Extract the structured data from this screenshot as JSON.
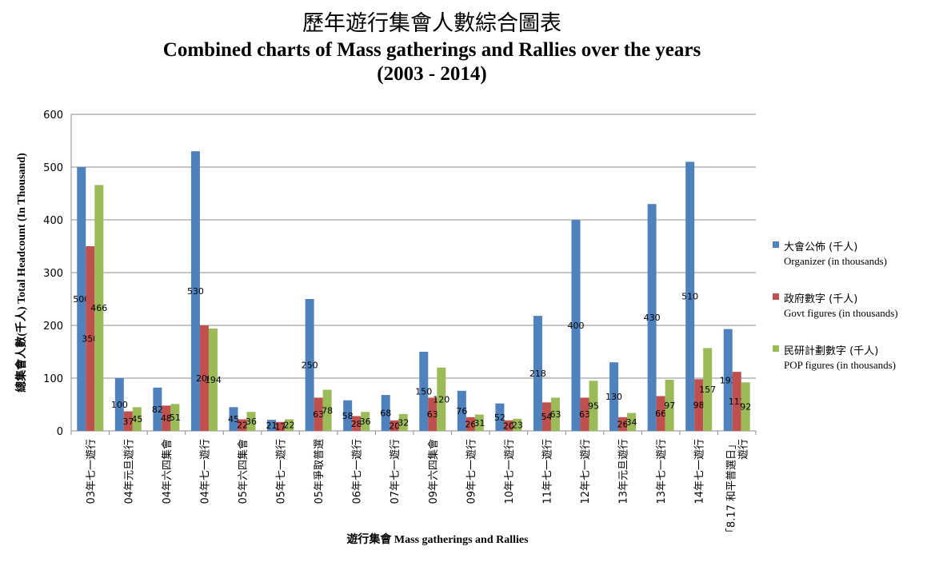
{
  "chart_data": {
    "type": "bar",
    "title": "歷年遊行集會人數綜合圖表",
    "subtitle": "Combined charts of Mass gatherings and Rallies over the years",
    "subtitle2": "(2003 - 2014)",
    "xlabel": "遊行集會 Mass gatherings and Rallies",
    "ylabel": "總集會人數(千人) Total Headcount (In Thousand)",
    "ylim": [
      0,
      600
    ],
    "yticks": [
      "0",
      "100",
      "200",
      "300",
      "400",
      "500",
      "600"
    ],
    "grid": true,
    "legend_position": "right",
    "categories": [
      {
        "lines": [
          "03年七一遊行"
        ]
      },
      {
        "lines": [
          "04年元旦遊行"
        ]
      },
      {
        "lines": [
          "04年六四集會"
        ]
      },
      {
        "lines": [
          "04年七一遊行"
        ]
      },
      {
        "lines": [
          "05年六四集會"
        ]
      },
      {
        "lines": [
          "05年七一遊行"
        ]
      },
      {
        "lines": [
          "05年爭取普選"
        ]
      },
      {
        "lines": [
          "06年七一遊行"
        ]
      },
      {
        "lines": [
          "07年七一遊行"
        ]
      },
      {
        "lines": [
          "09年六四集會"
        ]
      },
      {
        "lines": [
          "09年七一遊行"
        ]
      },
      {
        "lines": [
          "10年七一遊行"
        ]
      },
      {
        "lines": [
          "11年七一遊行"
        ]
      },
      {
        "lines": [
          "12年七一遊行"
        ]
      },
      {
        "lines": [
          "13年元旦遊行"
        ]
      },
      {
        "lines": [
          "13年七一遊行"
        ]
      },
      {
        "lines": [
          "14年七一遊行"
        ]
      },
      {
        "lines": [
          "「8.17 和平普選日」",
          "遊行"
        ]
      }
    ],
    "series": [
      {
        "name": "大會公佈 (千人)",
        "name_en": "Organizer (in thousands)",
        "color": "#4F81BD",
        "values": [
          500,
          100,
          82,
          530,
          45,
          21,
          250,
          58,
          68,
          150,
          76,
          52,
          218,
          400,
          130,
          430,
          510,
          193
        ]
      },
      {
        "name": "政府數字 (千人)",
        "name_en": "Govt figures (in thousands)",
        "color": "#C0504D",
        "values": [
          350,
          37,
          48,
          200,
          22,
          17,
          63,
          28,
          20,
          63,
          26,
          20,
          54,
          63,
          26,
          66,
          98,
          112
        ]
      },
      {
        "name": "民研計劃數字 (千人)",
        "name_en": "POP figures (in thousands)",
        "color": "#9BBB59",
        "values": [
          466,
          45,
          51,
          194,
          36,
          22,
          78,
          36,
          32,
          120,
          31,
          23,
          63,
          95,
          34,
          97,
          157,
          92
        ]
      }
    ]
  }
}
